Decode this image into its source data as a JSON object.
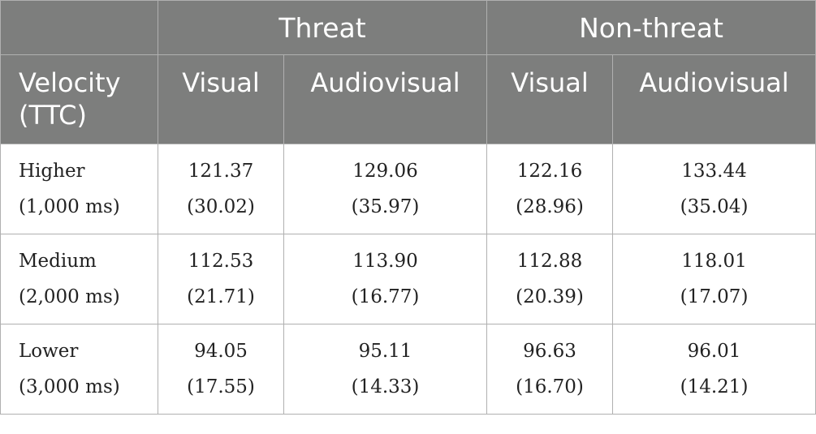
{
  "header": {
    "groups": [
      "Threat",
      "Non-threat"
    ],
    "row_label_line1": "Velocity",
    "row_label_line2": "(TTC)",
    "columns": [
      "Visual",
      "Audiovisual",
      "Visual",
      "Audiovisual"
    ]
  },
  "rows": [
    {
      "label_line1": "Higher",
      "label_line2": "(1,000 ms)",
      "cells": [
        {
          "mean": "121.37",
          "sd": "(30.02)"
        },
        {
          "mean": "129.06",
          "sd": "(35.97)"
        },
        {
          "mean": "122.16",
          "sd": "(28.96)"
        },
        {
          "mean": "133.44",
          "sd": "(35.04)"
        }
      ]
    },
    {
      "label_line1": "Medium",
      "label_line2": "(2,000 ms)",
      "cells": [
        {
          "mean": "112.53",
          "sd": "(21.71)"
        },
        {
          "mean": "113.90",
          "sd": "(16.77)"
        },
        {
          "mean": "112.88",
          "sd": "(20.39)"
        },
        {
          "mean": "118.01",
          "sd": "(17.07)"
        }
      ]
    },
    {
      "label_line1": "Lower",
      "label_line2": "(3,000 ms)",
      "cells": [
        {
          "mean": "94.05",
          "sd": "(17.55)"
        },
        {
          "mean": "95.11",
          "sd": "(14.33)"
        },
        {
          "mean": "96.63",
          "sd": "(16.70)"
        },
        {
          "mean": "96.01",
          "sd": "(14.21)"
        }
      ]
    }
  ]
}
